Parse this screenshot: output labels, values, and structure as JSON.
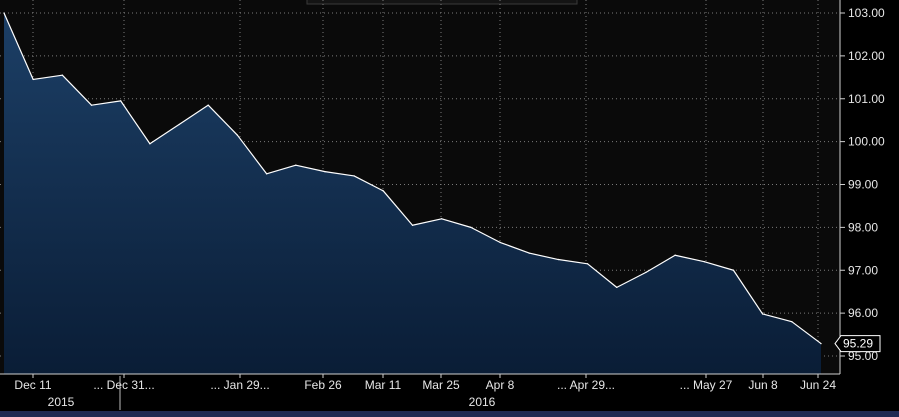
{
  "chart_data": {
    "type": "area",
    "title": "",
    "xlabel": "",
    "ylabel": "",
    "ylim": [
      94.8,
      103.2
    ],
    "y_ticks": [
      "103.00",
      "102.00",
      "101.00",
      "100.00",
      "99.00",
      "98.00",
      "97.00",
      "96.00",
      "95.00"
    ],
    "x_tick_labels": [
      "Dec 11",
      "... Dec 31...",
      "... Jan 29...",
      "Feb 26",
      "Mar 11",
      "Mar 25",
      "Apr 8",
      "... Apr 29...",
      "... May 27",
      "Jun 8",
      "Jun 24"
    ],
    "year_labels": [
      "2015",
      "2016"
    ],
    "last_value_label": "95.29",
    "grid": true,
    "colors": {
      "line": "#ffffff",
      "fill_top": "#1c3f66",
      "fill_bottom": "#0a1d36",
      "background": "#0a0a0a",
      "grid": "#8a8a8a"
    },
    "series": [
      {
        "values": [
          103.0,
          101.45,
          101.55,
          100.85,
          100.95,
          99.95,
          100.4,
          100.85,
          100.15,
          99.25,
          99.45,
          99.3,
          99.2,
          98.85,
          98.05,
          98.2,
          98.0,
          97.65,
          97.4,
          97.25,
          97.15,
          96.6,
          96.95,
          97.35,
          97.2,
          97.0,
          95.98,
          95.8,
          95.29
        ]
      }
    ]
  }
}
